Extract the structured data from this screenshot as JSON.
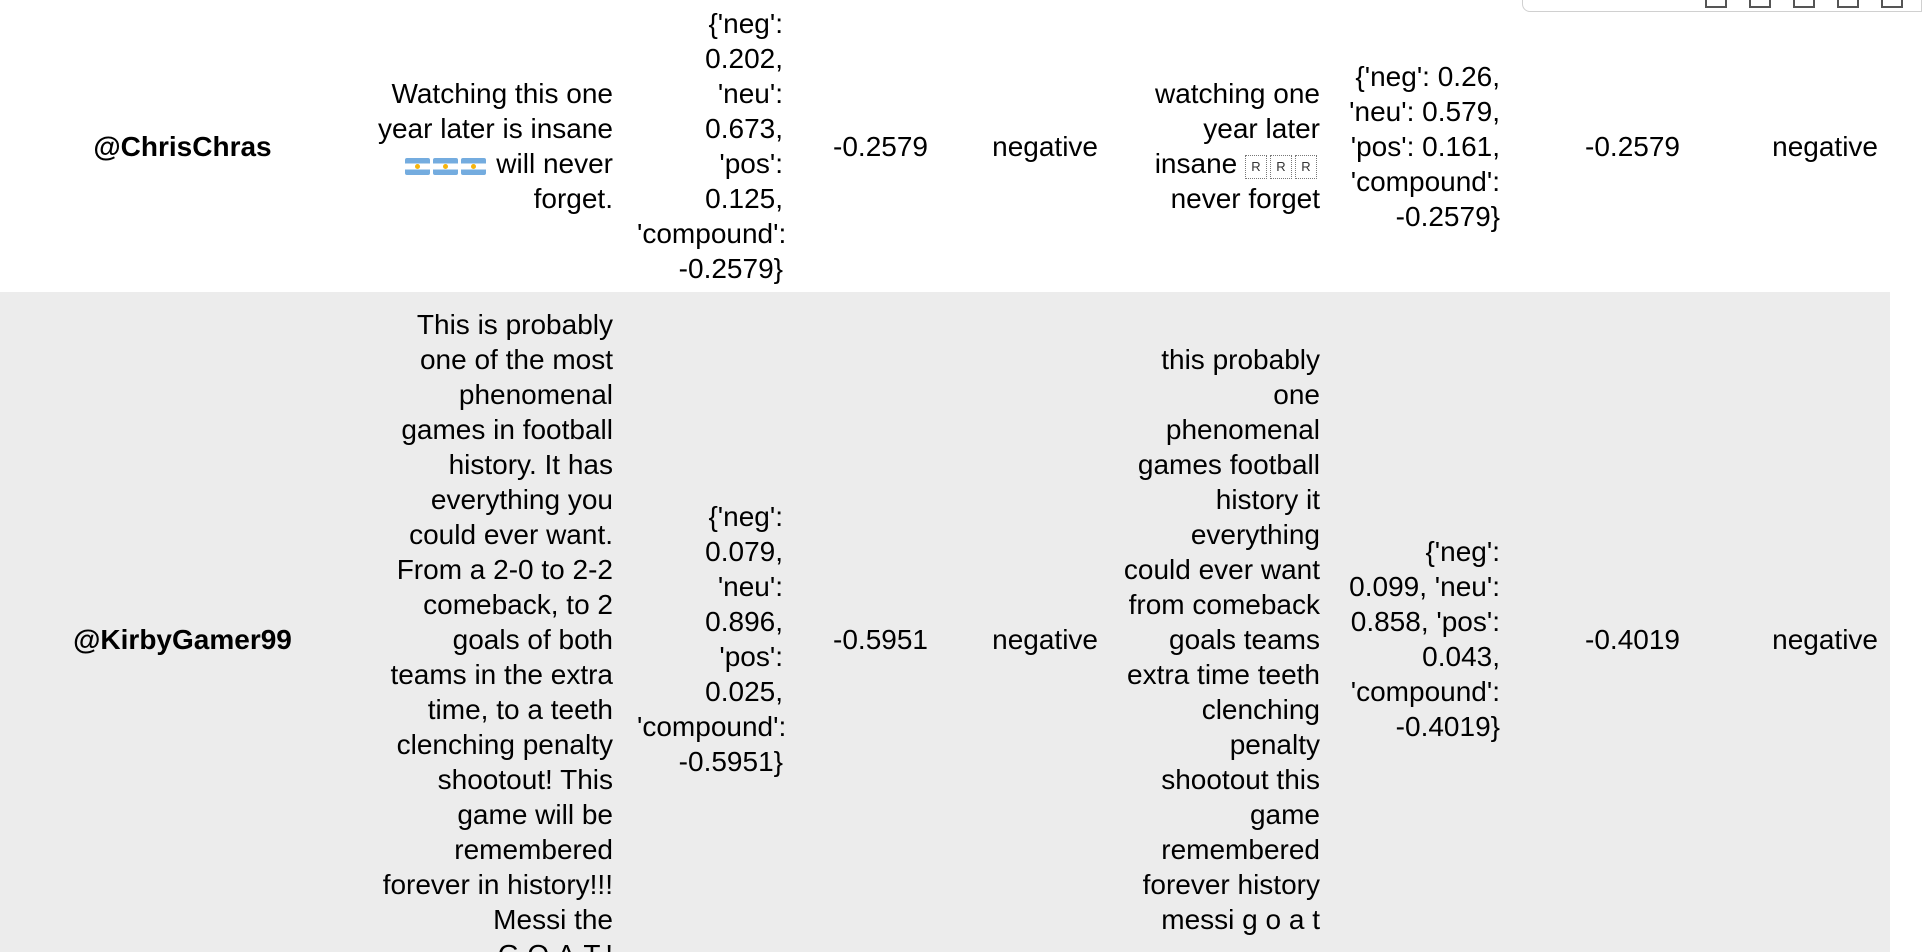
{
  "table": {
    "rows": [
      {
        "user": "@ChrisChras",
        "text_before": "Watching this one year later is insane",
        "text_after": "will never forget.",
        "scores": "{'neg': 0.202, 'neu': 0.673, 'pos': 0.125, 'compound': -0.2579}",
        "compound": "-0.2579",
        "sentiment": "negative",
        "clean_before": "watching one year later insane",
        "clean_after": "never forget",
        "clean_glyph": "R",
        "clean_scores": "{'neg': 0.26, 'neu': 0.579, 'pos': 0.161, 'compound': -0.2579}",
        "clean_compound": "-0.2579",
        "clean_sentiment": "negative"
      },
      {
        "user": "@KirbyGamer99",
        "text": "This is probably one of the most phenomenal games in football history. It has everything you could ever want. From a 2-0 to 2-2 comeback, to 2 goals of both teams in the extra time, to a teeth clenching penalty shootout! This game will be remembered forever in history!!! Messi the G.O.A.T.!",
        "scores": "{'neg': 0.079, 'neu': 0.896, 'pos': 0.025, 'compound': -0.5951}",
        "compound": "-0.5951",
        "sentiment": "negative",
        "clean_text": "this probably one phenomenal games football history it everything could ever want from comeback goals teams extra time teeth clenching penalty shootout this game remembered forever history messi g o a t",
        "clean_scores": "{'neg': 0.099, 'neu': 0.858, 'pos': 0.043, 'compound': -0.4019}",
        "clean_compound": "-0.4019",
        "clean_sentiment": "negative"
      }
    ]
  },
  "colors": {
    "stripe_row": "#ececec",
    "flag_blue": "#74acdf",
    "flag_sun": "#f6b40e"
  },
  "icons": [
    "argentina-flag-emoji",
    "missing-glyph-box",
    "output-toolbar"
  ]
}
